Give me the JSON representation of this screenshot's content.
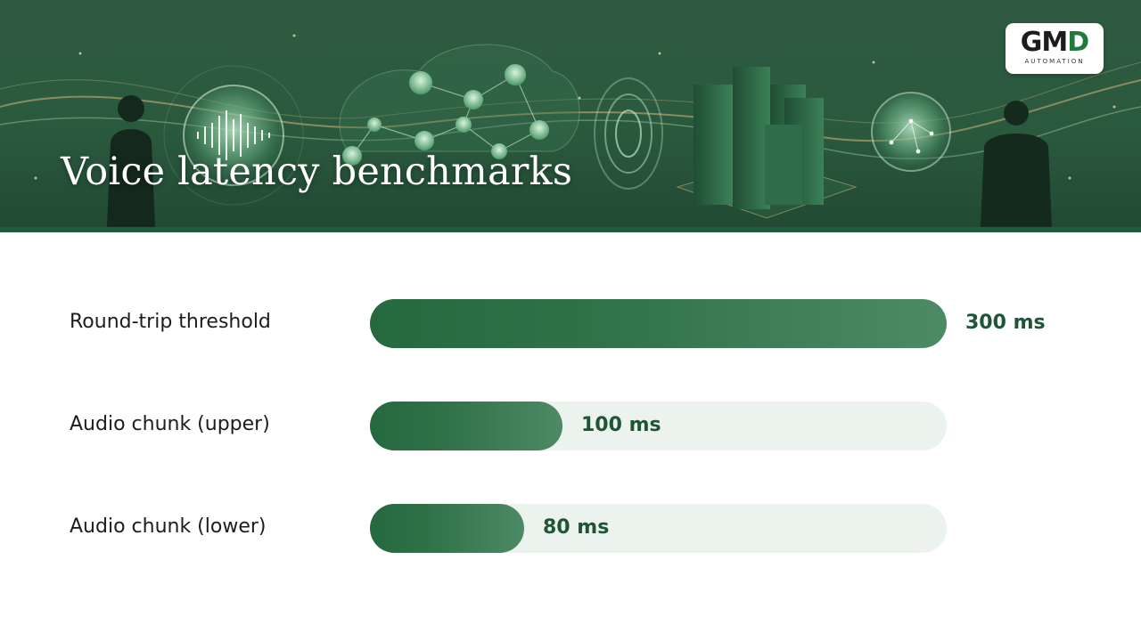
{
  "header": {
    "title": "Voice latency benchmarks",
    "logo": {
      "mark_left": "GM",
      "mark_right": "D",
      "subtitle": "AUTOMATION"
    }
  },
  "colors": {
    "banner": "#2a5a3e",
    "bar_fill_start": "#25693f",
    "bar_fill_end": "#4d8a66",
    "track": "#ecf2ee",
    "value_text": "#1e5535"
  },
  "chart_data": {
    "type": "bar",
    "orientation": "horizontal",
    "categories": [
      "Round-trip threshold",
      "Audio chunk (upper)",
      "Audio chunk (lower)"
    ],
    "values": [
      300,
      100,
      80
    ],
    "value_labels": [
      "300 ms",
      "100 ms",
      "80 ms"
    ],
    "unit": "ms",
    "xlim": [
      0,
      300
    ],
    "grid": false,
    "legend": "none"
  }
}
